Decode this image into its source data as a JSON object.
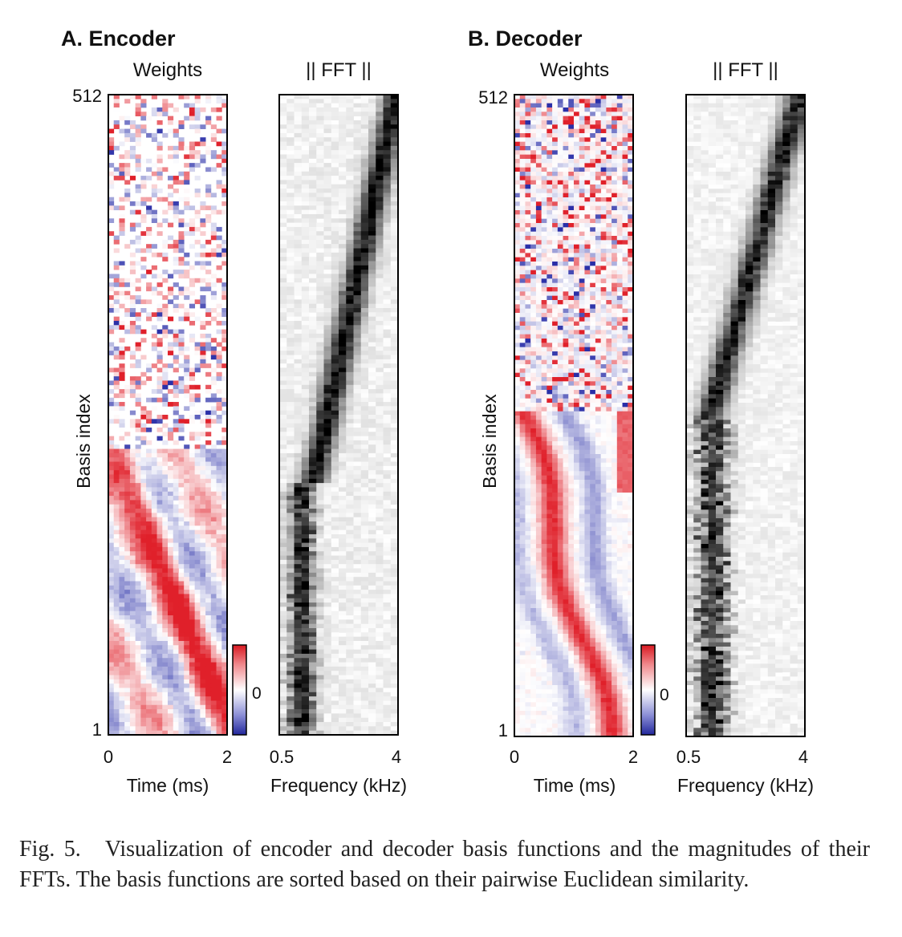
{
  "figure": {
    "panels": [
      {
        "id": "A",
        "title": "A. Encoder",
        "style": "noisy",
        "weights_title": "Weights",
        "fft_title": "|| FFT ||"
      },
      {
        "id": "B",
        "title": "B. Decoder",
        "style": "smooth",
        "weights_title": "Weights",
        "fft_title": "|| FFT ||"
      }
    ],
    "y_label": "Basis index",
    "y_ticks": [
      "512",
      "1"
    ],
    "time_axis": {
      "label": "Time (ms)",
      "ticks": [
        "0",
        "2"
      ]
    },
    "freq_axis": {
      "label": "Frequency (kHz)",
      "ticks": [
        "0.5",
        "4"
      ]
    },
    "colorbar_tick": "0",
    "colors": {
      "positive": "#e0202a",
      "negative": "#2a2fa8",
      "zero": "#ffffff",
      "magnitude": "#000000"
    }
  },
  "chart_data": {
    "type": "heatmap",
    "description_units": "basis index 1–512 vs time (0–2 ms) and frequency (0.5–4 kHz)",
    "basis_index_range": [
      1,
      512
    ],
    "time_range_ms": [
      0,
      2
    ],
    "frequency_range_khz": [
      0.5,
      4
    ],
    "colorbar_center": 0
  },
  "caption": {
    "label": "Fig. 5.",
    "text": "Visualization of encoder and decoder basis functions and the magnitudes of their FFTs. The basis functions are sorted based on their pairwise Euclidean similarity."
  }
}
